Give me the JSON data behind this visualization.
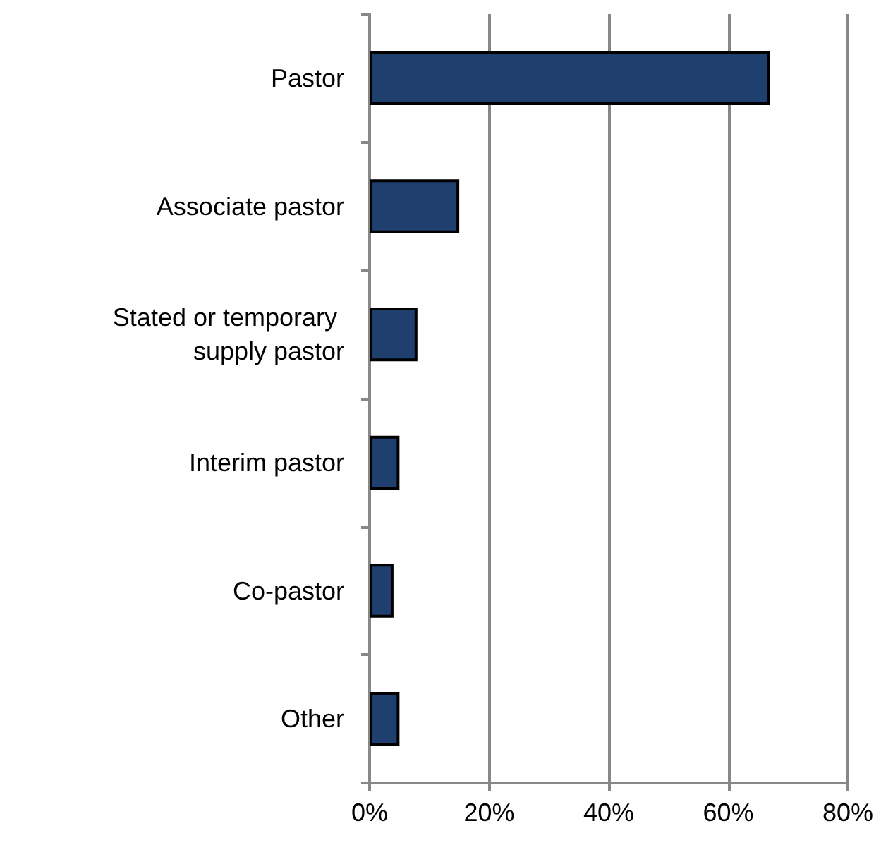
{
  "chart_data": {
    "type": "bar",
    "orientation": "horizontal",
    "categories": [
      "Pastor",
      "Associate pastor",
      "Stated or temporary supply pastor",
      "Interim pastor",
      "Co-pastor",
      "Other"
    ],
    "values": [
      67,
      15,
      8,
      5,
      4,
      5
    ],
    "color": "#1f3f6e",
    "xlim": [
      0,
      80
    ],
    "xticks": [
      {
        "value": 0,
        "label": "0%"
      },
      {
        "value": 20,
        "label": "20%"
      },
      {
        "value": 40,
        "label": "40%"
      },
      {
        "value": 60,
        "label": "60%"
      },
      {
        "value": 80,
        "label": "80%"
      }
    ],
    "grid": "x"
  }
}
